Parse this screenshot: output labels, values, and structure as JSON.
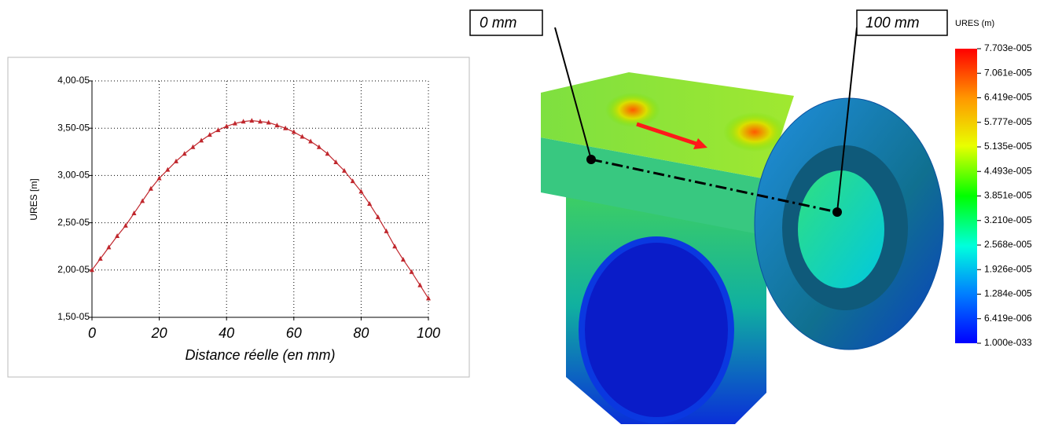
{
  "chart_data": {
    "type": "line",
    "y_label": "URES [m]",
    "x_label": "Distance réelle (en mm)",
    "x": [
      0,
      2.5,
      5,
      7.5,
      10,
      12.5,
      15,
      17.5,
      20,
      22.5,
      25,
      27.5,
      30,
      32.5,
      35,
      37.5,
      40,
      42.5,
      45,
      47.5,
      50,
      52.5,
      55,
      57.5,
      60,
      62.5,
      65,
      67.5,
      70,
      72.5,
      75,
      77.5,
      80,
      82.5,
      85,
      87.5,
      90,
      92.5,
      95,
      97.5,
      100
    ],
    "values": [
      2e-05,
      2.12e-05,
      2.24e-05,
      2.36e-05,
      2.47e-05,
      2.6e-05,
      2.73e-05,
      2.86e-05,
      2.97e-05,
      3.06e-05,
      3.15e-05,
      3.23e-05,
      3.3e-05,
      3.37e-05,
      3.43e-05,
      3.48e-05,
      3.52e-05,
      3.55e-05,
      3.57e-05,
      3.58e-05,
      3.57e-05,
      3.56e-05,
      3.53e-05,
      3.5e-05,
      3.46e-05,
      3.41e-05,
      3.36e-05,
      3.3e-05,
      3.23e-05,
      3.14e-05,
      3.05e-05,
      2.94e-05,
      2.83e-05,
      2.7e-05,
      2.56e-05,
      2.41e-05,
      2.25e-05,
      2.11e-05,
      1.98e-05,
      1.84e-05,
      1.7e-05
    ],
    "color": "#c0272d",
    "xlim": [
      0,
      100
    ],
    "xticks": [
      0,
      20,
      40,
      60,
      80,
      100
    ],
    "ylim": [
      1.5e-05,
      4e-05
    ],
    "yticks": [
      {
        "value": 1.5e-05,
        "label": "1,50-05"
      },
      {
        "value": 2e-05,
        "label": "2,00-05"
      },
      {
        "value": 2.5e-05,
        "label": "2,50-05"
      },
      {
        "value": 3e-05,
        "label": "3,00-05"
      },
      {
        "value": 3.5e-05,
        "label": "3,50-05"
      },
      {
        "value": 4e-05,
        "label": "4,00-05"
      }
    ],
    "grid": true
  },
  "model_view": {
    "start_label": "0 mm",
    "end_label": "100 mm",
    "legend_title": "URES (m)",
    "legend_labels": [
      "7.703e-005",
      "7.061e-005",
      "6.419e-005",
      "5.777e-005",
      "5.135e-005",
      "4.493e-005",
      "3.851e-005",
      "3.210e-005",
      "2.568e-005",
      "1.926e-005",
      "1.284e-005",
      "6.419e-006",
      "1.000e-033"
    ]
  }
}
